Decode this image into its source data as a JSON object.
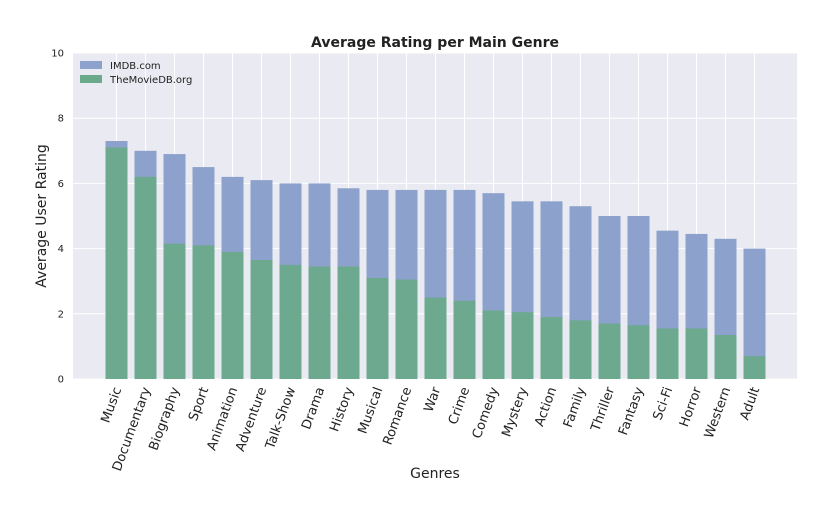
{
  "chart_data": {
    "type": "bar",
    "title": "Average Rating per Main Genre",
    "xlabel": "Genres",
    "ylabel": "Average User Rating",
    "ylim": [
      0,
      10
    ],
    "yticks": [
      0,
      2,
      4,
      6,
      8,
      10
    ],
    "grid": true,
    "legend_position": "top-left",
    "categories": [
      "Music",
      "Documentary",
      "Biography",
      "Sport",
      "Animation",
      "Adventure",
      "Talk-Show",
      "Drama",
      "History",
      "Musical",
      "Romance",
      "War",
      "Crime",
      "Comedy",
      "Mystery",
      "Action",
      "Family",
      "Thriller",
      "Fantasy",
      "Sci-Fi",
      "Horror",
      "Western",
      "Adult"
    ],
    "series": [
      {
        "name": "IMDB.com",
        "color": "#8ca1cc",
        "values": [
          7.3,
          7.0,
          6.9,
          6.5,
          6.2,
          6.1,
          6.0,
          6.0,
          5.85,
          5.8,
          5.8,
          5.8,
          5.8,
          5.7,
          5.45,
          5.45,
          5.3,
          5.0,
          5.0,
          4.55,
          4.45,
          4.3,
          4.0
        ]
      },
      {
        "name": "TheMovieDB.org",
        "color": "#6aaa8a",
        "values": [
          7.1,
          6.2,
          4.15,
          4.1,
          3.9,
          3.65,
          3.5,
          3.45,
          3.45,
          3.1,
          3.05,
          2.5,
          2.4,
          2.1,
          2.05,
          1.9,
          1.8,
          1.7,
          1.65,
          1.55,
          1.55,
          1.35,
          0.7
        ]
      }
    ]
  }
}
